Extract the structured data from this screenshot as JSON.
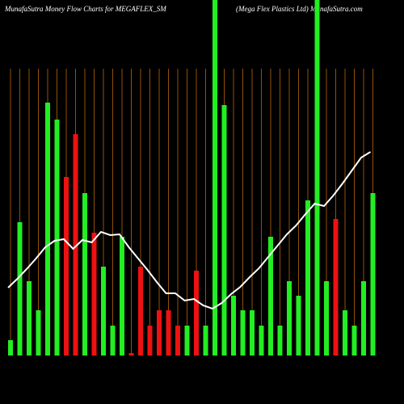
{
  "chart_data": {
    "type": "bar",
    "title": "MunafaSutra  Money Flow  Charts for MEGAFLEX_SM",
    "subtitle": "(Mega  Flex Plastics Ltd) MunafaSutra.com",
    "ylim": [
      0,
      440
    ],
    "grid": true,
    "grid_color": "#b8650a",
    "series": [
      {
        "type": "bar",
        "values": [
          19,
          165,
          92,
          56,
          313,
          292,
          221,
          274,
          201,
          152,
          110,
          37,
          147,
          3,
          110,
          37,
          56,
          56,
          37,
          37,
          105,
          37,
          440,
          310,
          74,
          56,
          56,
          37,
          147,
          37,
          92,
          74,
          192,
          440,
          92,
          169,
          56,
          37,
          92,
          201
        ],
        "colors": [
          "#22ee22",
          "#22ee22",
          "#22ee22",
          "#22ee22",
          "#22ee22",
          "#22ee22",
          "#ee1111",
          "#ee1111",
          "#22ee22",
          "#ee1111",
          "#22ee22",
          "#22ee22",
          "#22ee22",
          "#ee1111",
          "#ee1111",
          "#ee1111",
          "#ee1111",
          "#ee1111",
          "#ee1111",
          "#22ee22",
          "#ee1111",
          "#22ee22",
          "#22ee22",
          "#22ee22",
          "#22ee22",
          "#22ee22",
          "#22ee22",
          "#22ee22",
          "#22ee22",
          "#22ee22",
          "#22ee22",
          "#22ee22",
          "#22ee22",
          "#22ee22",
          "#22ee22",
          "#ee1111",
          "#22ee22",
          "#22ee22",
          "#22ee22",
          "#22ee22"
        ]
      },
      {
        "type": "line",
        "color": "#ffffff",
        "values": [
          84,
          95,
          107,
          120,
          134,
          142,
          144,
          132,
          143,
          140,
          153,
          149,
          150,
          134,
          120,
          106,
          91,
          77,
          77,
          68,
          70,
          62,
          58,
          65,
          76,
          85,
          97,
          108,
          122,
          136,
          150,
          161,
          175,
          188,
          185,
          198,
          213,
          229,
          245,
          252
        ]
      }
    ]
  }
}
